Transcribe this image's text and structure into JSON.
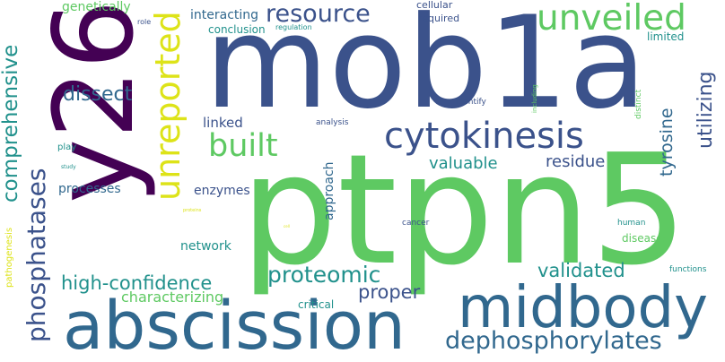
{
  "words": [
    {
      "text": "ptpn5",
      "color": "#5ec962",
      "rotated": false
    },
    {
      "text": "mob1a",
      "color": "#3b528b",
      "rotated": false
    },
    {
      "text": "y26",
      "color": "#440154",
      "rotated": true
    },
    {
      "text": "abscission",
      "color": "#31688e",
      "rotated": false
    },
    {
      "text": "midbody",
      "color": "#31688e",
      "rotated": false
    },
    {
      "text": "cytokinesis",
      "color": "#3b528b",
      "rotated": false
    },
    {
      "text": "unveiled",
      "color": "#5ec962",
      "rotated": false
    },
    {
      "text": "unreported",
      "color": "#dde318",
      "rotated": true
    },
    {
      "text": "built",
      "color": "#5ec962",
      "rotated": false
    },
    {
      "text": "resource",
      "color": "#3b528b",
      "rotated": false
    },
    {
      "text": "dephosphorylates",
      "color": "#31688e",
      "rotated": false
    },
    {
      "text": "phosphatases",
      "color": "#3b528b",
      "rotated": true
    },
    {
      "text": "comprehensive",
      "color": "#21918c",
      "rotated": true
    },
    {
      "text": "proteomic",
      "color": "#21918c",
      "rotated": false
    },
    {
      "text": "high-confidence",
      "color": "#21918c",
      "rotated": false
    },
    {
      "text": "utilizing",
      "color": "#3b528b",
      "rotated": true
    },
    {
      "text": "validated",
      "color": "#21918c",
      "rotated": false
    },
    {
      "text": "proper",
      "color": "#3b528b",
      "rotated": false
    },
    {
      "text": "dissect",
      "color": "#31688e",
      "rotated": false
    },
    {
      "text": "valuable",
      "color": "#21918c",
      "rotated": false
    },
    {
      "text": "residue",
      "color": "#3b528b",
      "rotated": false
    },
    {
      "text": "tyrosine",
      "color": "#31688e",
      "rotated": true
    },
    {
      "text": "characterizing",
      "color": "#5ec962",
      "rotated": false
    },
    {
      "text": "linked",
      "color": "#3b528b",
      "rotated": false
    },
    {
      "text": "enzymes",
      "color": "#3b528b",
      "rotated": false
    },
    {
      "text": "processes",
      "color": "#31688e",
      "rotated": false
    },
    {
      "text": "network",
      "color": "#21918c",
      "rotated": false
    },
    {
      "text": "approach",
      "color": "#31688e",
      "rotated": true
    },
    {
      "text": "interacting",
      "color": "#31688e",
      "rotated": false
    },
    {
      "text": "genetically",
      "color": "#5ec962",
      "rotated": false
    },
    {
      "text": "cellular",
      "color": "#3b528b",
      "rotated": false
    },
    {
      "text": "required",
      "color": "#3b528b",
      "rotated": false
    },
    {
      "text": "limited",
      "color": "#21918c",
      "rotated": false
    },
    {
      "text": "conclusion",
      "color": "#21918c",
      "rotated": false
    },
    {
      "text": "critical",
      "color": "#21918c",
      "rotated": false
    },
    {
      "text": "diseases",
      "color": "#5ec962",
      "rotated": false
    },
    {
      "text": "pathogenesis",
      "color": "#dde318",
      "rotated": true
    },
    {
      "text": "play",
      "color": "#21918c",
      "rotated": false
    },
    {
      "text": "identify",
      "color": "#3b528b",
      "rotated": false
    },
    {
      "text": "analysis",
      "color": "#3b528b",
      "rotated": false
    },
    {
      "text": "cancer",
      "color": "#3b528b",
      "rotated": false
    },
    {
      "text": "human",
      "color": "#21918c",
      "rotated": false
    },
    {
      "text": "functions",
      "color": "#21918c",
      "rotated": false
    },
    {
      "text": "distinct",
      "color": "#5ec962",
      "rotated": true
    },
    {
      "text": "regulation",
      "color": "#21918c",
      "rotated": false
    },
    {
      "text": "role",
      "color": "#3b528b",
      "rotated": false
    },
    {
      "text": "including",
      "color": "#5ec962",
      "rotated": true
    },
    {
      "text": "study",
      "color": "#21918c",
      "rotated": false
    },
    {
      "text": "proteins",
      "color": "#dde318",
      "rotated": false
    },
    {
      "text": "cell",
      "color": "#dde318",
      "rotated": false
    }
  ]
}
